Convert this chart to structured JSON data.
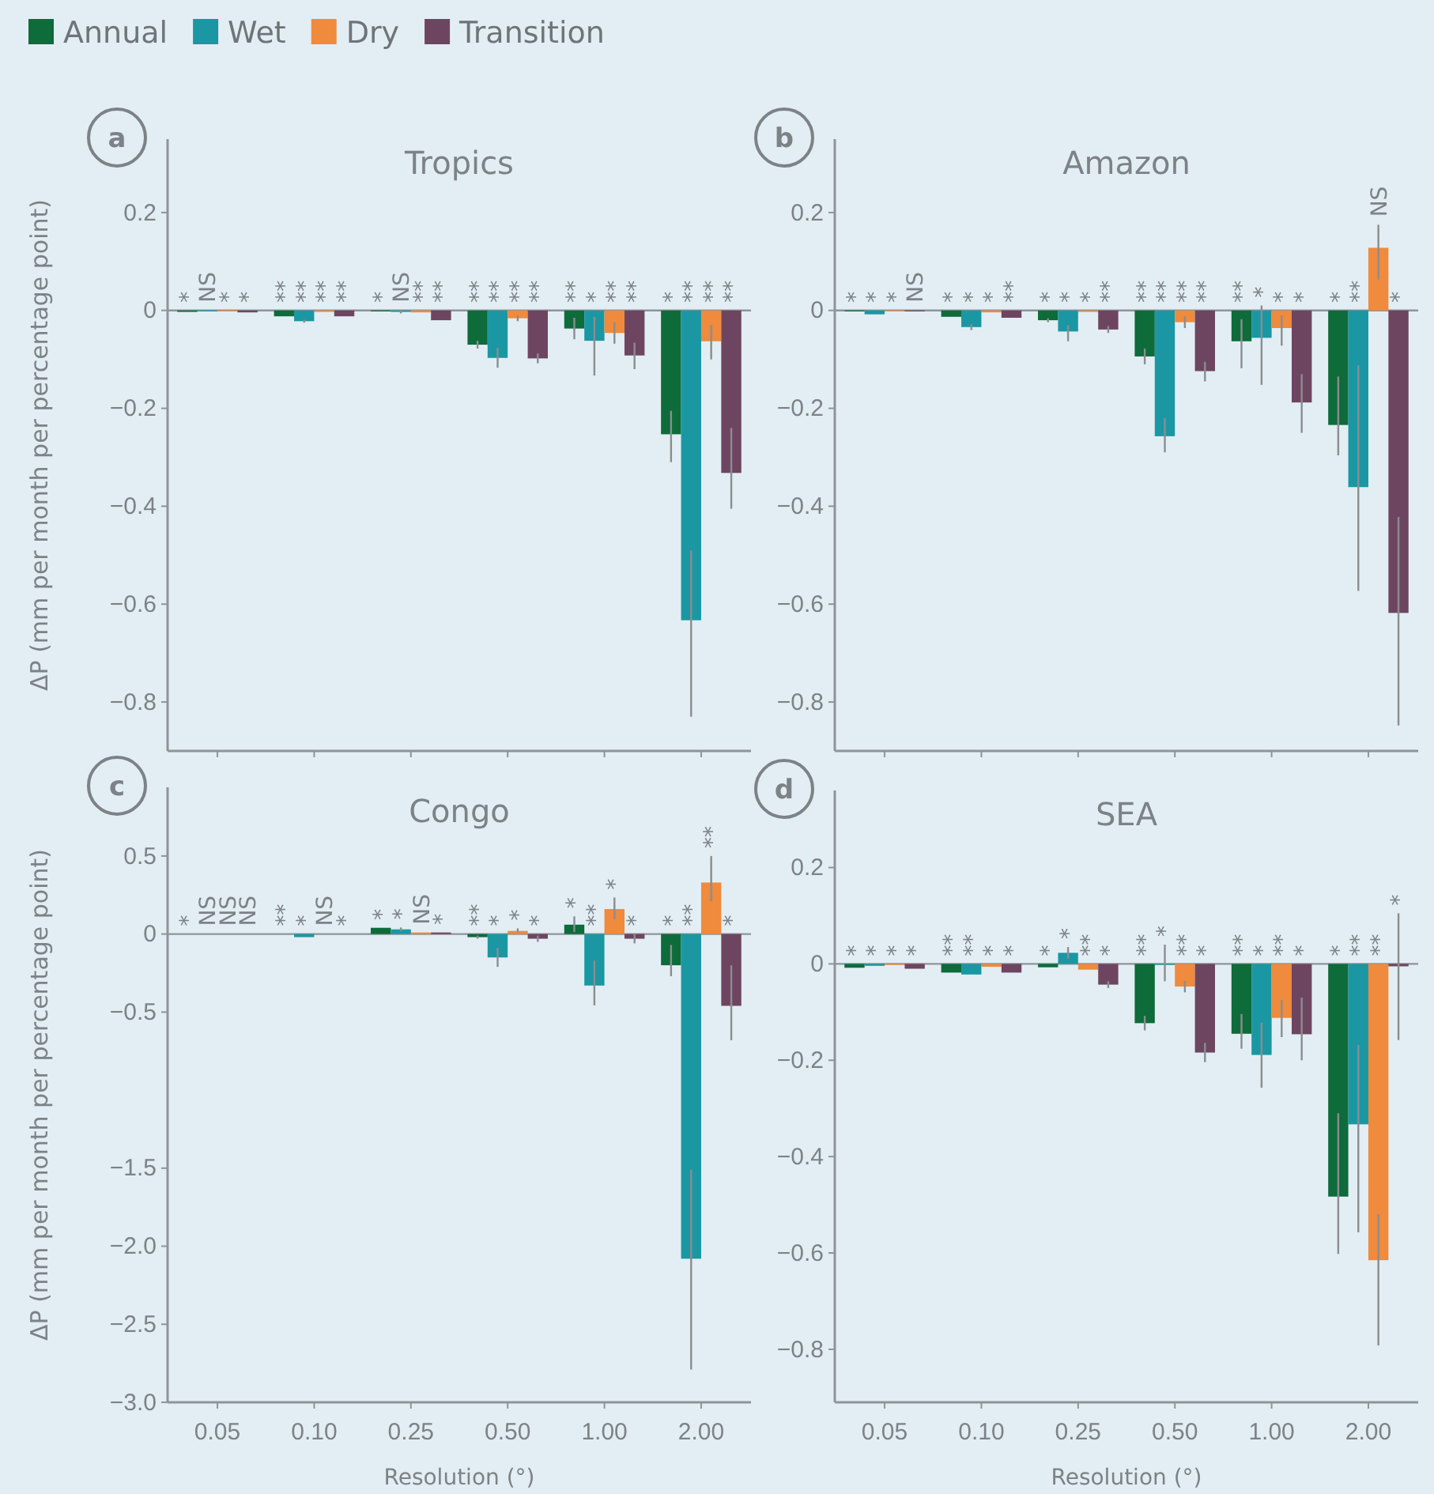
{
  "chart_data": [
    {
      "type": "bar",
      "subtitle": "a",
      "title": "Tropics",
      "ylabel": "ΔP (mm per month per percentage point)",
      "categories": [
        null,
        null,
        null,
        null,
        null,
        null
      ],
      "ylim": [
        -0.9,
        0.35
      ],
      "yticks": [
        {
          "value": 0.2,
          "label": "0.2"
        },
        {
          "value": 0,
          "label": "0"
        },
        {
          "value": -0.2,
          "label": "−0.2"
        },
        {
          "value": -0.4,
          "label": "−0.4"
        },
        {
          "value": -0.6,
          "label": "−0.6"
        },
        {
          "value": -0.8,
          "label": "−0.8"
        }
      ],
      "legend": "top left",
      "series": [
        {
          "name": "Annual",
          "color": "#0e6b3a",
          "values": [
            -0.003,
            -0.012,
            -0.002,
            -0.07,
            -0.037,
            -0.253
          ],
          "errors": [
            null,
            null,
            null,
            [
              -0.078,
              -0.062
            ],
            [
              -0.059,
              -0.015
            ],
            [
              -0.31,
              -0.205
            ]
          ]
        },
        {
          "name": "Wet",
          "color": "#1a97a3",
          "values": [
            -0.002,
            -0.022,
            -0.003,
            -0.097,
            -0.062,
            -0.633
          ],
          "errors": [
            null,
            [
              -0.025,
              -0.019
            ],
            [
              -0.006,
              0
            ],
            [
              -0.117,
              -0.077
            ],
            [
              -0.133,
              -0.013
            ],
            [
              -0.83,
              -0.49
            ]
          ]
        },
        {
          "name": "Dry",
          "color": "#f08a3c",
          "values": [
            -0.002,
            -0.003,
            -0.004,
            -0.016,
            -0.046,
            -0.063
          ],
          "errors": [
            null,
            null,
            null,
            [
              -0.022,
              -0.01
            ],
            [
              -0.068,
              -0.024
            ],
            [
              -0.1,
              -0.03
            ]
          ]
        },
        {
          "name": "Transition",
          "color": "#6e4560",
          "values": [
            -0.004,
            -0.012,
            -0.02,
            -0.098,
            -0.092,
            -0.332
          ],
          "errors": [
            null,
            null,
            null,
            [
              -0.108,
              -0.088
            ],
            [
              -0.12,
              -0.066
            ],
            [
              -0.405,
              -0.24
            ]
          ]
        }
      ],
      "annotations": [
        "*",
        "NS",
        "*",
        "*",
        "**",
        "**",
        "**",
        "**",
        "*",
        "NS",
        "**",
        "**",
        "**",
        "**",
        "**",
        "**",
        "**",
        "*",
        "**",
        "**",
        "*",
        "**",
        "**",
        "**"
      ]
    },
    {
      "type": "bar",
      "subtitle": "b",
      "title": "Amazon",
      "categories": [
        null,
        null,
        null,
        null,
        null,
        null
      ],
      "ylim": [
        -0.9,
        0.35
      ],
      "yticks": [
        {
          "value": 0.2,
          "label": "0.2"
        },
        {
          "value": 0,
          "label": "0"
        },
        {
          "value": -0.2,
          "label": "−0.2"
        },
        {
          "value": -0.4,
          "label": "−0.4"
        },
        {
          "value": -0.6,
          "label": "−0.6"
        },
        {
          "value": -0.8,
          "label": "−0.8"
        }
      ],
      "series": [
        {
          "color": "#0e6b3a",
          "values": [
            -0.002,
            -0.013,
            -0.02,
            -0.094,
            -0.063,
            -0.234
          ],
          "errors": [
            null,
            null,
            [
              -0.024,
              -0.016
            ],
            [
              -0.11,
              -0.078
            ],
            [
              -0.118,
              -0.018
            ],
            [
              -0.296,
              -0.135
            ]
          ]
        },
        {
          "color": "#1a97a3",
          "values": [
            -0.008,
            -0.034,
            -0.043,
            -0.257,
            -0.056,
            -0.361
          ],
          "errors": [
            null,
            [
              -0.04,
              -0.028
            ],
            [
              -0.063,
              -0.03
            ],
            [
              -0.29,
              -0.22
            ],
            [
              -0.152,
              0.01
            ],
            [
              -0.573,
              -0.112
            ]
          ]
        },
        {
          "color": "#f08a3c",
          "values": [
            -0.002,
            -0.004,
            -0.003,
            -0.024,
            -0.036,
            0.128
          ],
          "errors": [
            null,
            null,
            null,
            [
              -0.036,
              -0.012
            ],
            [
              -0.072,
              -0.01
            ],
            [
              0.063,
              0.175
            ]
          ]
        },
        {
          "color": "#6e4560",
          "values": [
            -0.002,
            -0.015,
            -0.039,
            -0.124,
            -0.188,
            -0.618
          ],
          "errors": [
            null,
            null,
            [
              -0.046,
              -0.032
            ],
            [
              -0.145,
              -0.105
            ],
            [
              -0.25,
              -0.13
            ],
            [
              -0.848,
              -0.422
            ]
          ]
        }
      ],
      "annotations": [
        "*",
        "*",
        "*",
        "NS",
        "*",
        "*",
        "*",
        "**",
        "*",
        "*",
        "*",
        "**",
        "**",
        "**",
        "**",
        "**",
        "**",
        "*",
        "*",
        "*",
        "*",
        "**",
        "NS",
        "*"
      ]
    },
    {
      "type": "bar",
      "subtitle": "c",
      "title": "Congo",
      "ylabel": "ΔP (mm per month per percentage point)",
      "xlabel": "Resolution (°)",
      "categories": [
        "0.05",
        "0.10",
        "0.25",
        "0.50",
        "1.00",
        "2.00"
      ],
      "ylim": [
        -3.0,
        0.94
      ],
      "yticks": [
        0.5,
        {
          "value": 0,
          "label": "0"
        },
        {
          "value": -0.5,
          "label": "−0.5"
        },
        {
          "value": -1.5,
          "label": "−1.5"
        },
        {
          "value": -2.0,
          "label": "−2.0"
        },
        {
          "value": -2.5,
          "label": "−2.5"
        },
        {
          "value": -3.0,
          "label": "−3.0"
        }
      ],
      "series": [
        {
          "color": "#0e6b3a",
          "values": [
            0,
            0,
            0.04,
            -0.02,
            0.06,
            -0.2
          ],
          "errors": [
            null,
            null,
            null,
            [
              -0.03,
              -0.01
            ],
            [
              0.013,
              0.113
            ],
            [
              -0.27,
              -0.07
            ]
          ]
        },
        {
          "color": "#1a97a3",
          "values": [
            0,
            -0.02,
            0.03,
            -0.15,
            -0.33,
            -2.08
          ],
          "errors": [
            null,
            null,
            [
              0.018,
              0.042
            ],
            [
              -0.21,
              -0.09
            ],
            [
              -0.457,
              -0.17
            ],
            [
              -2.79,
              -1.51
            ]
          ]
        },
        {
          "color": "#f08a3c",
          "values": [
            0,
            0,
            0.01,
            0.02,
            0.16,
            0.33
          ],
          "errors": [
            null,
            null,
            null,
            [
              0.012,
              0.036
            ],
            [
              0.094,
              0.234
            ],
            [
              0.21,
              0.5
            ]
          ]
        },
        {
          "color": "#6e4560",
          "values": [
            0,
            0,
            0.01,
            -0.03,
            -0.03,
            -0.46
          ],
          "errors": [
            null,
            null,
            null,
            [
              -0.05,
              -0.01
            ],
            [
              -0.06,
              0
            ],
            [
              -0.68,
              -0.2
            ]
          ]
        }
      ],
      "annotations": [
        "*",
        "NS",
        "NS",
        "NS",
        "**",
        "*",
        "NS",
        "*",
        "*",
        "*",
        "NS",
        "*",
        "**",
        "*",
        "*",
        "*",
        "*",
        "**",
        "*",
        "*",
        "*",
        "**",
        "**",
        "*"
      ]
    },
    {
      "type": "bar",
      "subtitle": "d",
      "title": "SEA",
      "xlabel": "Resolution (°)",
      "categories": [
        "0.05",
        "0.10",
        "0.25",
        "0.50",
        "1.00",
        "2.00"
      ],
      "ylim": [
        -0.91,
        0.36
      ],
      "yticks": [
        {
          "value": 0.2,
          "label": "0.2"
        },
        {
          "value": 0,
          "label": "0"
        },
        {
          "value": -0.2,
          "label": "−0.2"
        },
        {
          "value": -0.4,
          "label": "−0.4"
        },
        {
          "value": -0.6,
          "label": "−0.6"
        },
        {
          "value": -0.8,
          "label": "−0.8"
        }
      ],
      "series": [
        {
          "color": "#0e6b3a",
          "values": [
            -0.008,
            -0.018,
            -0.007,
            -0.123,
            -0.145,
            -0.483
          ],
          "errors": [
            null,
            null,
            null,
            [
              -0.138,
              -0.108
            ],
            [
              -0.176,
              -0.104
            ],
            [
              -0.602,
              -0.31
            ]
          ]
        },
        {
          "color": "#1a97a3",
          "values": [
            -0.004,
            -0.022,
            0.023,
            -0.002,
            -0.189,
            -0.333
          ],
          "errors": [
            null,
            null,
            [
              0.011,
              0.035
            ],
            [
              -0.036,
              0.04
            ],
            [
              -0.257,
              -0.122
            ],
            [
              -0.557,
              -0.168
            ]
          ]
        },
        {
          "color": "#f08a3c",
          "values": [
            -0.002,
            -0.006,
            -0.012,
            -0.047,
            -0.112,
            -0.615
          ],
          "errors": [
            null,
            null,
            null,
            [
              -0.059,
              -0.035
            ],
            [
              -0.152,
              -0.075
            ],
            [
              -0.792,
              -0.52
            ]
          ]
        },
        {
          "color": "#6e4560",
          "values": [
            -0.01,
            -0.018,
            -0.043,
            -0.184,
            -0.146,
            -0.005
          ],
          "errors": [
            null,
            null,
            [
              -0.05,
              -0.036
            ],
            [
              -0.204,
              -0.164
            ],
            [
              -0.2,
              -0.07
            ],
            [
              -0.158,
              0.105
            ]
          ]
        }
      ],
      "annotations": [
        "*",
        "*",
        "*",
        "*",
        "**",
        "**",
        "*",
        "*",
        "*",
        "*",
        "**",
        "*",
        "**",
        "*",
        "**",
        "*",
        "**",
        "*",
        "**",
        "*",
        "*",
        "**",
        "**",
        "*"
      ]
    }
  ]
}
